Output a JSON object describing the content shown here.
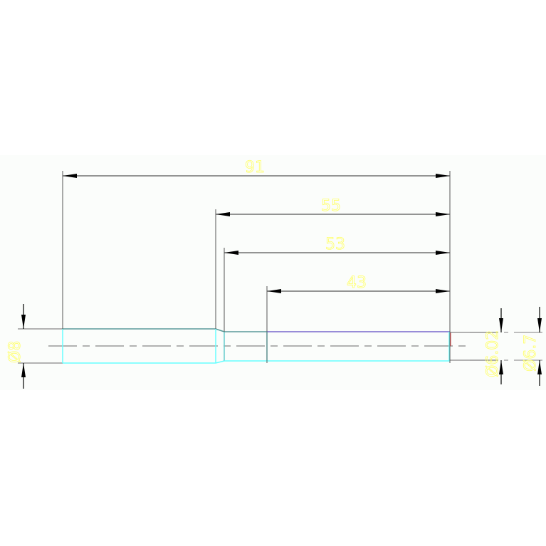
{
  "drawing": {
    "colors": {
      "background": "#fbfdfb",
      "dimension_line": "#555555",
      "dimension_text": "#ffff66",
      "outline_cyan": "#66ffff",
      "outline_purple": "#7766cc",
      "centerline": "#999999"
    },
    "dimensions": {
      "overall_length": "91",
      "length_55": "55",
      "length_53": "53",
      "length_43": "43",
      "dia_left": "Ø8",
      "dia_right_inner": "Ø6.02",
      "dia_right_outer": "Ø6.7"
    }
  }
}
